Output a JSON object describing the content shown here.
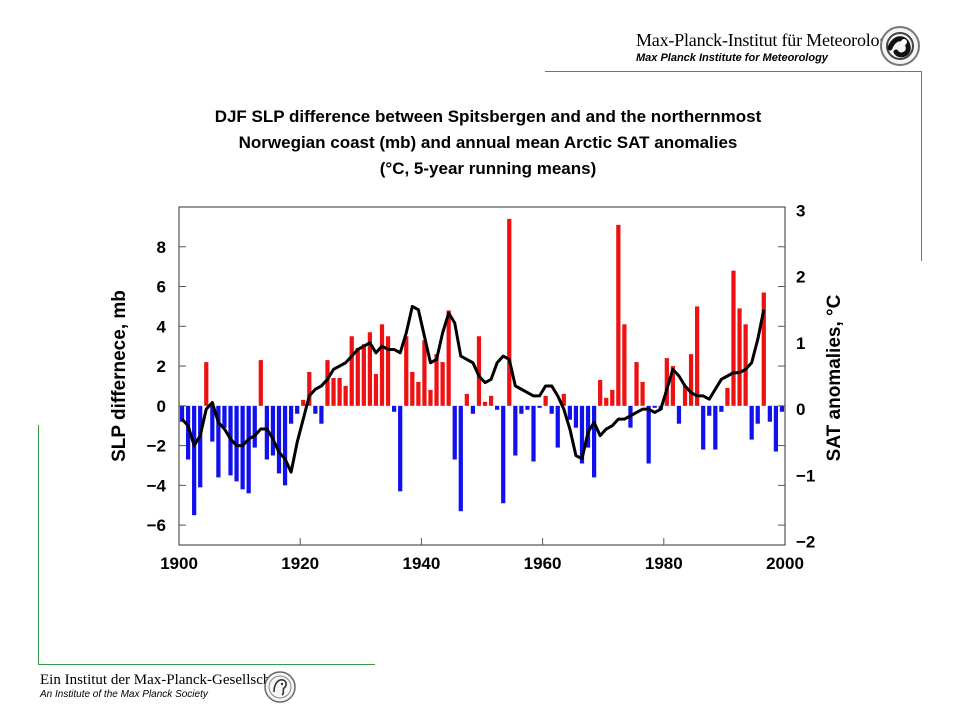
{
  "header": {
    "org_name_de": "Max-Planck-Institut für Meteorologie",
    "org_name_en": "Max Planck Institute for Meteorology",
    "logo_icon": "mpi-meteorology-logo-icon"
  },
  "footer": {
    "org_name_de": "Ein Institut der Max-Planck-Gesellschaft",
    "org_name_en": "An Institute of the Max Planck Society",
    "logo_icon": "minerva-seal-icon"
  },
  "colors": {
    "accent_rule": "#3a9a4a",
    "positive_bar": "#ee1111",
    "negative_bar": "#1111ee",
    "line": "#000000"
  },
  "chart_data": {
    "type": "bar",
    "title_lines": [
      "DJF SLP difference between Spitsbergen and and the northernmost",
      "Norwegian coast (mb) and annual mean Arctic SAT anomalies",
      "(°C, 5-year running means)"
    ],
    "xlabel": "",
    "ylabel": "SLP differnece, mb",
    "y2label": "SAT anomalies, °C",
    "xlim": [
      1900,
      2000
    ],
    "ylim": [
      -7,
      10
    ],
    "y2lim": [
      -2.05,
      3.05
    ],
    "xticks": [
      "1900",
      "1920",
      "1940",
      "1960",
      "1980",
      "2000"
    ],
    "yticks": [
      "8",
      "6",
      "4",
      "2",
      "0",
      "−2",
      "−4",
      "−6"
    ],
    "y2ticks": [
      "3",
      "2",
      "1",
      "0",
      "−1",
      "−2"
    ],
    "grid": false,
    "bar_series": {
      "name": "",
      "x": [
        1900,
        1901,
        1902,
        1903,
        1904,
        1905,
        1906,
        1907,
        1908,
        1909,
        1910,
        1911,
        1912,
        1913,
        1914,
        1915,
        1916,
        1917,
        1918,
        1919,
        1920,
        1921,
        1922,
        1923,
        1924,
        1925,
        1926,
        1927,
        1928,
        1929,
        1930,
        1931,
        1932,
        1933,
        1934,
        1935,
        1936,
        1937,
        1938,
        1939,
        1940,
        1941,
        1942,
        1943,
        1944,
        1945,
        1946,
        1947,
        1948,
        1949,
        1950,
        1951,
        1952,
        1953,
        1954,
        1955,
        1956,
        1957,
        1958,
        1959,
        1960,
        1961,
        1962,
        1963,
        1964,
        1965,
        1966,
        1967,
        1968,
        1969,
        1970,
        1971,
        1972,
        1973,
        1974,
        1975,
        1976,
        1977,
        1978,
        1979,
        1980,
        1981,
        1982,
        1983,
        1984,
        1985,
        1986,
        1987,
        1988,
        1989,
        1990,
        1991,
        1992,
        1993,
        1994,
        1995,
        1996,
        1997,
        1998,
        1999
      ],
      "values": [
        -0.8,
        -2.7,
        -5.5,
        -4.1,
        2.2,
        -1.8,
        -3.6,
        -1.1,
        -3.5,
        -3.8,
        -4.2,
        -4.4,
        -2.1,
        2.3,
        -2.7,
        -2.5,
        -3.4,
        -4.0,
        -0.9,
        -0.4,
        0.3,
        1.7,
        -0.4,
        -0.9,
        2.3,
        1.4,
        1.4,
        1.0,
        3.5,
        2.9,
        3.1,
        3.7,
        1.6,
        4.1,
        3.5,
        -0.3,
        -4.3,
        3.5,
        1.7,
        1.2,
        3.3,
        0.8,
        2.6,
        2.2,
        4.8,
        -2.7,
        -5.3,
        0.6,
        -0.4,
        3.5,
        0.2,
        0.5,
        -0.2,
        -4.9,
        9.4,
        -2.5,
        -0.4,
        -0.2,
        -2.8,
        -0.1,
        0.5,
        -0.4,
        -2.1,
        0.6,
        -0.7,
        -1.1,
        -2.9,
        -2.1,
        -3.6,
        1.3,
        0.4,
        0.8,
        9.1,
        4.1,
        -1.1,
        2.2,
        1.2,
        -2.9,
        -0.1,
        -0.2,
        2.4,
        2.0,
        -0.9,
        1.0,
        2.6,
        5.0,
        -2.2,
        -0.5,
        -2.2,
        -0.3,
        0.9,
        6.8,
        4.9,
        4.1,
        -1.7,
        -0.9,
        5.7,
        -0.8,
        -2.3,
        -0.3
      ]
    },
    "line_series": {
      "name": "",
      "axis": "right",
      "x": [
        1900,
        1901,
        1902,
        1903,
        1904,
        1905,
        1906,
        1907,
        1908,
        1909,
        1910,
        1911,
        1912,
        1913,
        1914,
        1915,
        1916,
        1917,
        1918,
        1919,
        1920,
        1921,
        1922,
        1923,
        1924,
        1925,
        1926,
        1927,
        1928,
        1929,
        1930,
        1931,
        1932,
        1933,
        1934,
        1935,
        1936,
        1937,
        1938,
        1939,
        1940,
        1941,
        1942,
        1943,
        1944,
        1945,
        1946,
        1947,
        1948,
        1949,
        1950,
        1951,
        1952,
        1953,
        1954,
        1955,
        1956,
        1957,
        1958,
        1959,
        1960,
        1961,
        1962,
        1963,
        1964,
        1965,
        1966,
        1967,
        1968,
        1969,
        1970,
        1971,
        1972,
        1973,
        1974,
        1975,
        1976,
        1977,
        1978,
        1979,
        1980,
        1981,
        1982,
        1983,
        1984,
        1985,
        1986,
        1987,
        1988,
        1989,
        1990,
        1991,
        1992,
        1993,
        1994,
        1995,
        1996
      ],
      "values": [
        -0.15,
        -0.25,
        -0.55,
        -0.4,
        0.0,
        0.1,
        -0.2,
        -0.3,
        -0.45,
        -0.55,
        -0.55,
        -0.45,
        -0.4,
        -0.3,
        -0.3,
        -0.45,
        -0.65,
        -0.75,
        -0.95,
        -0.5,
        -0.15,
        0.2,
        0.3,
        0.35,
        0.45,
        0.6,
        0.65,
        0.7,
        0.8,
        0.9,
        0.95,
        1.0,
        0.85,
        0.95,
        0.9,
        0.9,
        0.85,
        1.15,
        1.55,
        1.5,
        1.1,
        0.7,
        0.75,
        1.15,
        1.45,
        1.3,
        0.8,
        0.75,
        0.7,
        0.5,
        0.4,
        0.45,
        0.7,
        0.8,
        0.75,
        0.35,
        0.3,
        0.25,
        0.2,
        0.2,
        0.35,
        0.35,
        0.2,
        0.0,
        -0.3,
        -0.7,
        -0.75,
        -0.35,
        -0.2,
        -0.4,
        -0.3,
        -0.25,
        -0.15,
        -0.15,
        -0.1,
        -0.05,
        0.0,
        0.0,
        -0.05,
        0.0,
        0.3,
        0.6,
        0.5,
        0.35,
        0.25,
        0.2,
        0.2,
        0.15,
        0.3,
        0.45,
        0.5,
        0.55,
        0.55,
        0.6,
        0.7,
        1.05,
        1.5
      ]
    }
  }
}
